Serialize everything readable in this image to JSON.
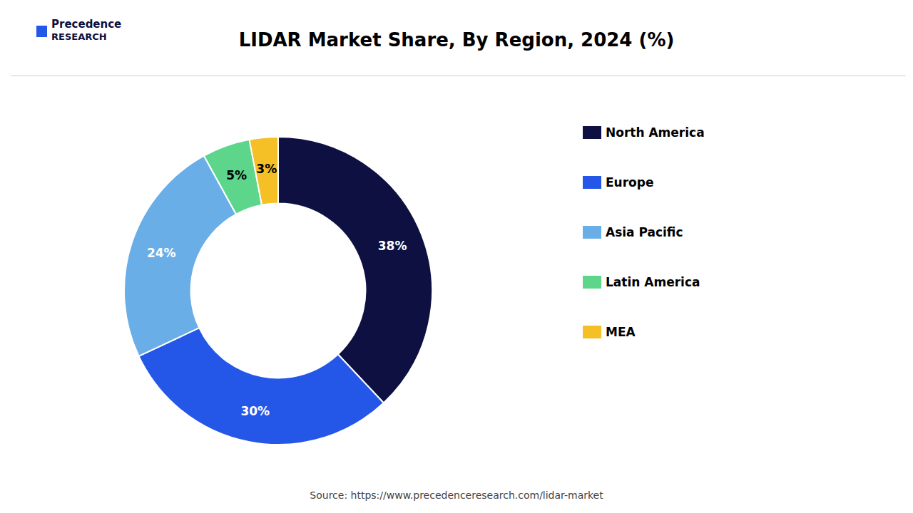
{
  "chart_data": {
    "type": "donut",
    "title": "LIDAR Market Share, By Region, 2024 (%)",
    "categories": [
      "North America",
      "Europe",
      "Asia Pacific",
      "Latin America",
      "MEA"
    ],
    "values": [
      38,
      30,
      24,
      5,
      3
    ],
    "value_labels": [
      "38%",
      "30%",
      "24%",
      "5%",
      "3%"
    ],
    "colors": [
      "#0d1040",
      "#2457e8",
      "#6aaee8",
      "#5dd68c",
      "#f5c025"
    ],
    "data_labels": true,
    "legend": "right",
    "annotations": [
      "Source: https://www.precedenceresearch.com/lidar-market",
      "Precedence",
      "RESEARCH"
    ]
  }
}
